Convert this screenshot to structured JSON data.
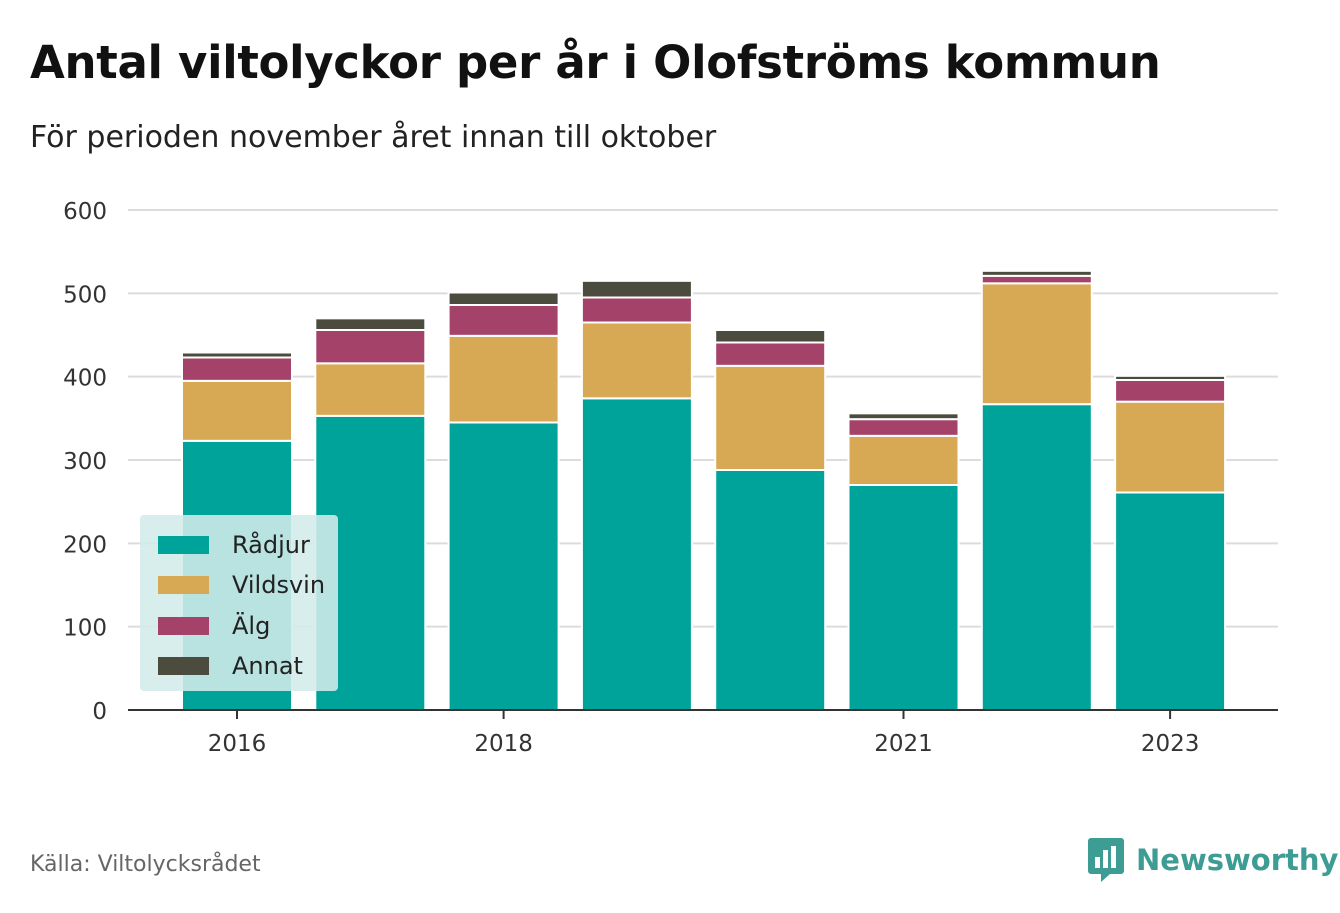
{
  "title": "Antal viltolyckor per år i Olofströms kommun",
  "subtitle": "För perioden november året innan till oktober",
  "source": "Källa: Viltolycksrådet",
  "brand": {
    "name": "Newsworthy",
    "icon": "newsworthy-logo-icon",
    "color": "#3d9c93"
  },
  "chart_data": {
    "type": "bar",
    "stacked": true,
    "x": [
      2016,
      2017,
      2018,
      2019,
      2020,
      2021,
      2022,
      2023
    ],
    "x_tick_labels": [
      "2016",
      "2018",
      "2021",
      "2023"
    ],
    "x_tick_values": [
      2016,
      2018,
      2021,
      2023
    ],
    "y_ticks": [
      0,
      100,
      200,
      300,
      400,
      500,
      600
    ],
    "ylim": [
      0,
      600
    ],
    "grid": true,
    "legend_position": "bottom-left",
    "series": [
      {
        "name": "Rådjur",
        "color": "#00a39a",
        "values": [
          323,
          353,
          345,
          374,
          288,
          270,
          367,
          261
        ]
      },
      {
        "name": "Vildsvin",
        "color": "#d8a955",
        "values": [
          72,
          63,
          104,
          91,
          125,
          59,
          145,
          109
        ]
      },
      {
        "name": "Älg",
        "color": "#a4426a",
        "values": [
          28,
          40,
          37,
          30,
          28,
          20,
          9,
          26
        ]
      },
      {
        "name": "Annat",
        "color": "#4b4c3e",
        "values": [
          6,
          14,
          15,
          20,
          15,
          7,
          6,
          5
        ]
      }
    ]
  }
}
